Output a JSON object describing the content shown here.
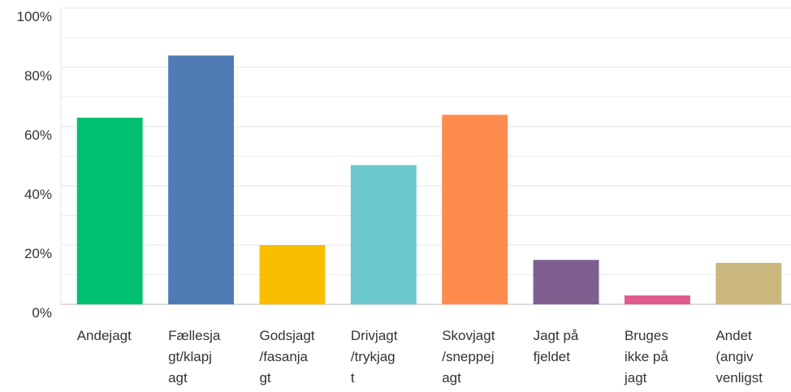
{
  "chart_data": {
    "type": "bar",
    "categories": [
      "Andejagt",
      "Fællesjagt/klapjagt",
      "Godsjagt/fasanjagt",
      "Drivjagt/trykjagt",
      "Skovjagt/sneppejagt",
      "Jagt på fjeldet",
      "Bruges ikke på jagt",
      "Andet (angiv venligst"
    ],
    "values": [
      63,
      84,
      20,
      47,
      64,
      15,
      3,
      14
    ],
    "colors": [
      "#00bf6f",
      "#507cb6",
      "#f9be00",
      "#6bc8cd",
      "#ff8b4f",
      "#7f5f90",
      "#e05c8c",
      "#c9b77d"
    ],
    "ylim": [
      0,
      100
    ],
    "yticks": [
      {
        "value": 0,
        "label": "0%"
      },
      {
        "value": 20,
        "label": "20%"
      },
      {
        "value": 40,
        "label": "40%"
      },
      {
        "value": 60,
        "label": "60%"
      },
      {
        "value": 80,
        "label": "80%"
      },
      {
        "value": 100,
        "label": "100%"
      }
    ],
    "minor_yticks": [
      10,
      30,
      50,
      70,
      90
    ],
    "grid": true
  }
}
